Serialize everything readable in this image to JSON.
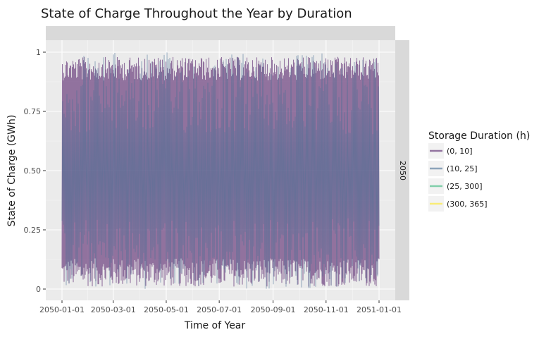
{
  "chart_data": {
    "type": "line",
    "title": "State of Charge Throughout the Year by Duration",
    "xlabel": "Time of Year",
    "ylabel": "State of Charge (GWh)",
    "facet_label": "2050",
    "xlim": [
      "2050-01-01",
      "2051-01-01"
    ],
    "ylim": [
      0,
      1
    ],
    "x_ticks": [
      "2050-01-01",
      "2050-03-01",
      "2050-05-01",
      "2050-07-01",
      "2050-09-01",
      "2050-11-01",
      "2051-01-01"
    ],
    "y_ticks": [
      {
        "value": 0,
        "label": "0"
      },
      {
        "value": 0.25,
        "label": "0.25"
      },
      {
        "value": 0.5,
        "label": "0.50"
      },
      {
        "value": 0.75,
        "label": "0.75"
      },
      {
        "value": 1,
        "label": "1"
      }
    ],
    "grid": true,
    "legend_position": "right",
    "legend_title": "Storage Duration (h)",
    "series": [
      {
        "name": "(0, 10]",
        "color": "#6b3f7d",
        "opacity": 0.7,
        "fill_range": [
          0.01,
          0.98
        ],
        "pattern": "dense-oscillation"
      },
      {
        "name": "(10, 25]",
        "color": "#4a6f95",
        "opacity": 0.6,
        "fill_range": [
          0.0,
          1.0
        ],
        "pattern": "dense-oscillation"
      },
      {
        "name": "(25, 300]",
        "color": "#35b779",
        "opacity": 0.5,
        "fill_range": null,
        "pattern": "none"
      },
      {
        "name": "(300, 365]",
        "color": "#fde725",
        "opacity": 0.5,
        "fill_range": null,
        "pattern": "none"
      }
    ]
  }
}
